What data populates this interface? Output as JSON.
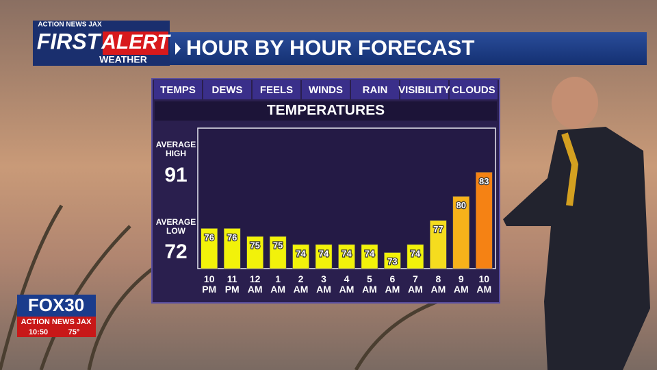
{
  "header": {
    "station": "ACTION NEWS JAX",
    "first": "FIRST",
    "alert": "ALERT",
    "weather": "WEATHER",
    "title": "HOUR BY HOUR FORECAST"
  },
  "tabs": [
    "TEMPS",
    "DEWS",
    "FEELS",
    "WINDS",
    "RAIN",
    "VISIBILITY",
    "CLOUDS"
  ],
  "averages": {
    "high_label": "AVERAGE\nHIGH",
    "high": "91",
    "low_label": "AVERAGE\nLOW",
    "low": "72"
  },
  "bug": {
    "logo": "FOX30",
    "station": "ACTION NEWS JAX",
    "time": "10:50",
    "temp": "75°"
  },
  "chart_data": {
    "type": "bar",
    "title": "TEMPERATURES",
    "categories": [
      "10\nPM",
      "11\nPM",
      "12\nAM",
      "1\nAM",
      "2\nAM",
      "3\nAM",
      "4\nAM",
      "5\nAM",
      "6\nAM",
      "7\nAM",
      "8\nAM",
      "9\nAM",
      "10\nAM"
    ],
    "values": [
      76,
      76,
      75,
      75,
      74,
      74,
      74,
      74,
      73,
      74,
      77,
      80,
      83
    ],
    "colors": [
      "#f2f20a",
      "#f2f20a",
      "#f2f20a",
      "#f2f20a",
      "#f2f20a",
      "#f2f20a",
      "#f2f20a",
      "#f2f20a",
      "#f2f20a",
      "#f2f20a",
      "#f5dc1e",
      "#f7b21a",
      "#f58214"
    ],
    "ylim": [
      71,
      88.5
    ]
  }
}
